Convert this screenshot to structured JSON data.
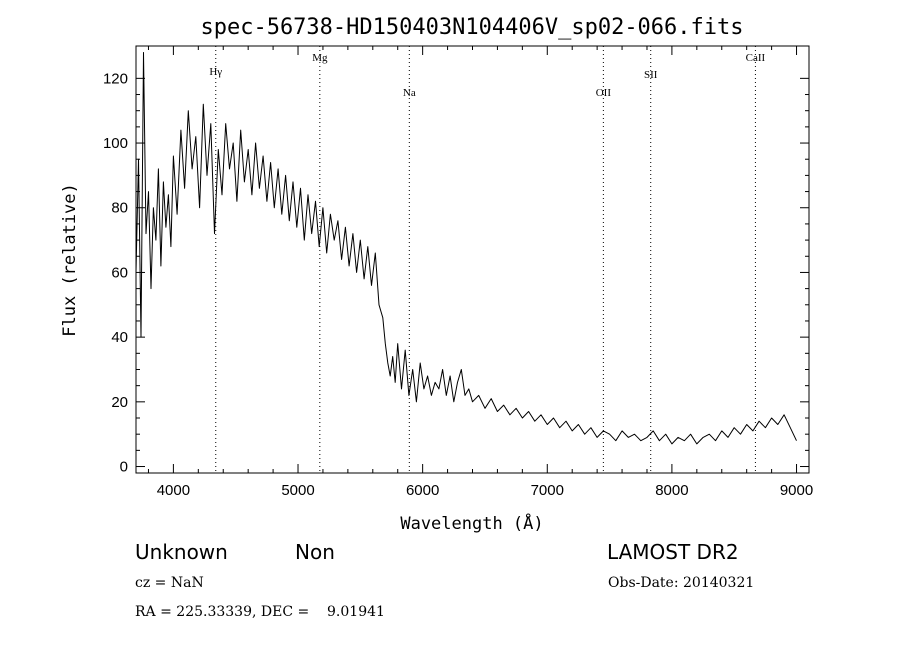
{
  "chart_data": {
    "type": "line",
    "title": "spec-56738-HD150403N104406V_sp02-066.fits",
    "xlabel": "Wavelength (Å)",
    "ylabel": "Flux (relative)",
    "xlim": [
      3700,
      9100
    ],
    "ylim": [
      -2,
      130
    ],
    "xticks": [
      4000,
      5000,
      6000,
      7000,
      8000,
      9000
    ],
    "yticks": [
      0,
      20,
      40,
      60,
      80,
      100,
      120
    ],
    "grid": false,
    "series": [
      {
        "x": [
          3700,
          3720,
          3740,
          3760,
          3780,
          3800,
          3820,
          3840,
          3860,
          3880,
          3900,
          3920,
          3940,
          3960,
          3980,
          4000,
          4030,
          4060,
          4090,
          4120,
          4150,
          4180,
          4210,
          4240,
          4270,
          4300,
          4330,
          4360,
          4390,
          4420,
          4450,
          4480,
          4510,
          4540,
          4570,
          4600,
          4630,
          4660,
          4690,
          4720,
          4750,
          4780,
          4810,
          4840,
          4870,
          4900,
          4930,
          4960,
          4990,
          5020,
          5050,
          5080,
          5110,
          5140,
          5170,
          5200,
          5230,
          5260,
          5290,
          5320,
          5350,
          5380,
          5410,
          5440,
          5470,
          5500,
          5530,
          5560,
          5590,
          5620,
          5650,
          5680,
          5700,
          5720,
          5740,
          5760,
          5780,
          5800,
          5830,
          5860,
          5890,
          5920,
          5950,
          5980,
          6010,
          6040,
          6070,
          6100,
          6130,
          6160,
          6190,
          6220,
          6250,
          6280,
          6310,
          6340,
          6370,
          6400,
          6450,
          6500,
          6550,
          6600,
          6650,
          6700,
          6750,
          6800,
          6850,
          6900,
          6950,
          7000,
          7050,
          7100,
          7150,
          7200,
          7250,
          7300,
          7350,
          7400,
          7450,
          7500,
          7550,
          7600,
          7650,
          7700,
          7750,
          7800,
          7850,
          7900,
          7950,
          8000,
          8050,
          8100,
          8150,
          8200,
          8250,
          8300,
          8350,
          8400,
          8450,
          8500,
          8550,
          8600,
          8650,
          8700,
          8750,
          8800,
          8850,
          8900,
          8950,
          9000
        ],
        "y": [
          60,
          95,
          40,
          128,
          72,
          85,
          55,
          80,
          70,
          92,
          62,
          88,
          74,
          84,
          68,
          96,
          78,
          104,
          86,
          110,
          92,
          102,
          80,
          112,
          90,
          106,
          72,
          98,
          84,
          106,
          92,
          100,
          82,
          104,
          88,
          98,
          84,
          100,
          86,
          96,
          82,
          94,
          80,
          92,
          78,
          90,
          76,
          88,
          74,
          86,
          70,
          84,
          72,
          82,
          68,
          80,
          66,
          78,
          70,
          76,
          64,
          74,
          62,
          72,
          60,
          70,
          58,
          68,
          56,
          66,
          50,
          46,
          38,
          32,
          28,
          34,
          26,
          38,
          24,
          36,
          22,
          30,
          20,
          32,
          24,
          28,
          22,
          26,
          24,
          30,
          22,
          28,
          20,
          26,
          30,
          22,
          24,
          20,
          22,
          18,
          21,
          17,
          19,
          16,
          18,
          15,
          17,
          14,
          16,
          13,
          15,
          12,
          14,
          11,
          13,
          10,
          12,
          9,
          11,
          10,
          8,
          11,
          9,
          10,
          8,
          9,
          11,
          8,
          10,
          7,
          9,
          8,
          10,
          7,
          9,
          10,
          8,
          11,
          9,
          12,
          10,
          13,
          11,
          14,
          12,
          15,
          13,
          16,
          12,
          8
        ]
      }
    ],
    "lines": [
      {
        "label": "Hγ",
        "x": 4340
      },
      {
        "label": "Mg",
        "x": 5175
      },
      {
        "label": "Na",
        "x": 5893
      },
      {
        "label": "OII",
        "x": 7450
      },
      {
        "label": "SII",
        "x": 7830
      },
      {
        "label": "CaII",
        "x": 8670
      }
    ]
  },
  "info": {
    "type_label": "Unknown",
    "subclass": "Non",
    "survey": "LAMOST DR2",
    "cz": "cz = NaN",
    "obs_date": "Obs-Date: 20140321",
    "coords": "RA = 225.33339, DEC =    9.01941"
  }
}
